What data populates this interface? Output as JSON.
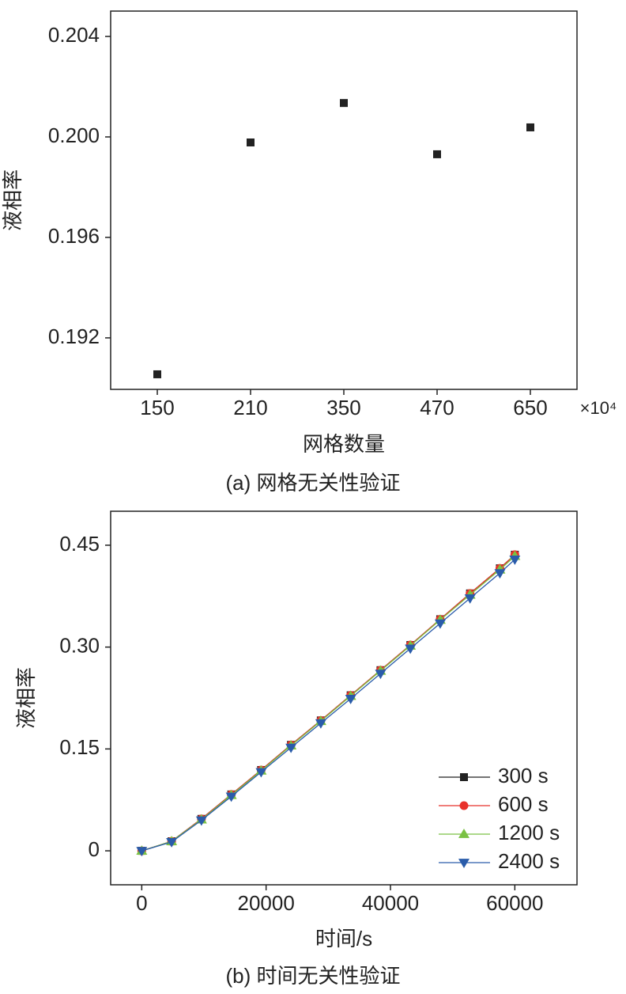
{
  "chart_data": [
    {
      "type": "scatter",
      "caption": "(a) 网格无关性验证",
      "x_label": "网格数量",
      "y_label": "液相率",
      "x_multiplier": "×10⁴",
      "categories": [
        "150",
        "210",
        "350",
        "470",
        "650"
      ],
      "series": [
        {
          "name": null,
          "color": "#222222",
          "marker": "square",
          "values": [
            0.19055,
            0.19978,
            0.20135,
            0.19931,
            0.20038
          ]
        }
      ],
      "ylim": [
        0.18995,
        0.20501
      ],
      "yticks": [
        0.192,
        0.196,
        {
          "value": 0.2,
          "label": "0.200"
        },
        0.204
      ]
    },
    {
      "type": "line",
      "caption": "(b) 时间无关性验证",
      "x_label": "时间/s",
      "y_label": "液相率",
      "x": [
        0,
        4800,
        9600,
        14400,
        19200,
        24000,
        28800,
        33600,
        38400,
        43200,
        48000,
        52800,
        57600,
        60000
      ],
      "series": [
        {
          "name": "300 s",
          "color": "#222222",
          "marker": "square",
          "values": [
            0,
            0.014,
            0.047,
            0.083,
            0.119,
            0.156,
            0.192,
            0.229,
            0.266,
            0.303,
            0.341,
            0.379,
            0.416,
            0.436
          ]
        },
        {
          "name": "600 s",
          "color": "#e8312a",
          "marker": "circle",
          "values": [
            0,
            0.014,
            0.047,
            0.083,
            0.119,
            0.156,
            0.192,
            0.229,
            0.266,
            0.303,
            0.341,
            0.379,
            0.416,
            0.436
          ]
        },
        {
          "name": "1200 s",
          "color": "#7ac143",
          "marker": "triangle-up",
          "values": [
            0,
            0.014,
            0.046,
            0.082,
            0.118,
            0.155,
            0.191,
            0.228,
            0.265,
            0.302,
            0.34,
            0.377,
            0.414,
            0.434
          ]
        },
        {
          "name": "2400 s",
          "color": "#2a5caa",
          "marker": "triangle-down",
          "values": [
            0,
            0.013,
            0.045,
            0.08,
            0.116,
            0.152,
            0.188,
            0.224,
            0.261,
            0.298,
            0.335,
            0.372,
            0.409,
            0.429
          ]
        }
      ],
      "xlim": [
        -5000,
        70000
      ],
      "xticks": [
        0,
        20000,
        40000,
        60000
      ],
      "ylim": [
        -0.05,
        0.5
      ],
      "yticks": [
        0,
        0.15,
        {
          "value": 0.3,
          "label": "0.30"
        },
        0.45
      ],
      "legend": "lower right"
    }
  ]
}
